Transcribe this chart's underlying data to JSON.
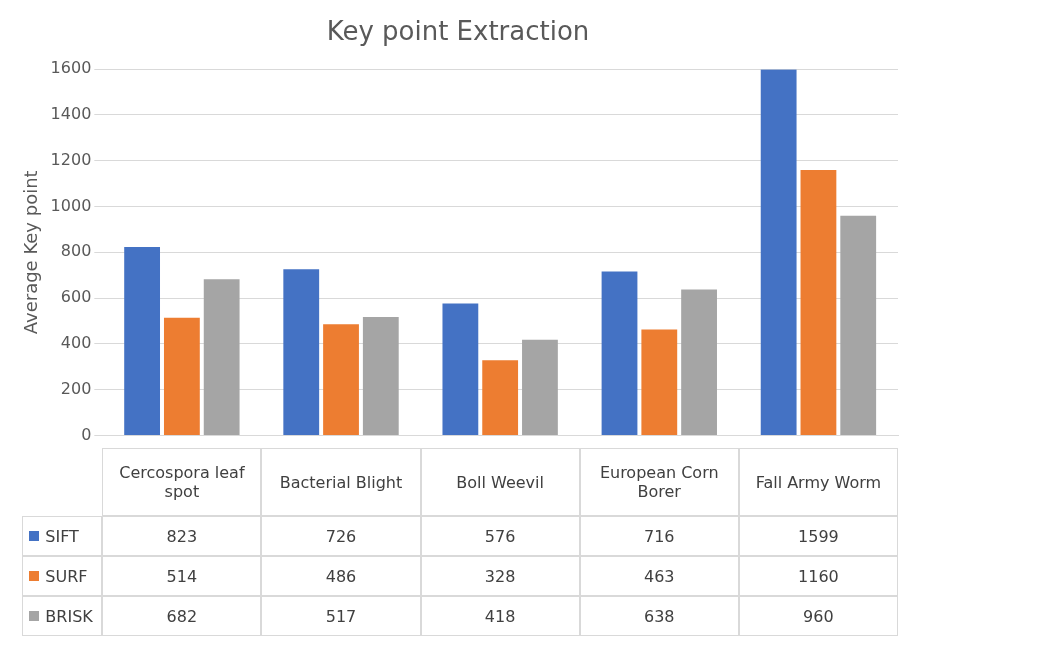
{
  "chart_data": {
    "type": "bar",
    "title": "Key point Extraction",
    "ylabel": "Average Key point",
    "categories": [
      "Cercospora leaf spot",
      "Bacterial Blight",
      "Boll Weevil",
      "European Corn Borer",
      "Fall Army Worm"
    ],
    "series": [
      {
        "name": "SIFT",
        "color": "#4472c4",
        "values": [
          823,
          726,
          576,
          716,
          1599
        ]
      },
      {
        "name": "SURF",
        "color": "#ed7d31",
        "values": [
          514,
          486,
          328,
          463,
          1160
        ]
      },
      {
        "name": "BRISK",
        "color": "#a5a5a5",
        "values": [
          682,
          517,
          418,
          638,
          960
        ]
      }
    ],
    "ylim": [
      0,
      1600
    ],
    "yticks": [
      0,
      200,
      400,
      600,
      800,
      1000,
      1200,
      1400,
      1600
    ],
    "grid": "y",
    "data_labels": true,
    "legend": "bottom"
  }
}
